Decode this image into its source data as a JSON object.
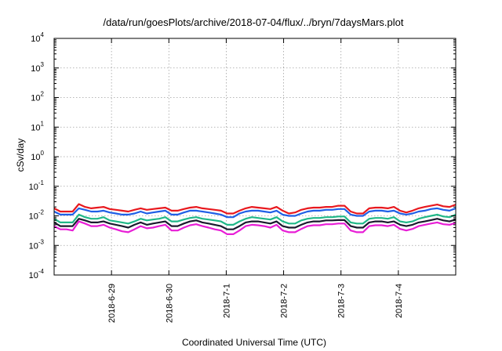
{
  "chart_data": {
    "type": "line",
    "title": "/data/run/goesPlots/archive/2018-07-04/flux/../bryn/7daysMars.plot",
    "xlabel": "Coordinated Universal Time (UTC)",
    "ylabel": "cSv/day",
    "y_scale": "log",
    "ylim": [
      0.0001,
      10000
    ],
    "y_ticks": [
      {
        "base": "10",
        "exp": "-4"
      },
      {
        "base": "10",
        "exp": "-3"
      },
      {
        "base": "10",
        "exp": "-2"
      },
      {
        "base": "10",
        "exp": "-1"
      },
      {
        "base": "10",
        "exp": "0"
      },
      {
        "base": "10",
        "exp": "1"
      },
      {
        "base": "10",
        "exp": "2"
      },
      {
        "base": "10",
        "exp": "3"
      },
      {
        "base": "10",
        "exp": "4"
      }
    ],
    "x_tick_labels": [
      "2018-6-29",
      "2018-6-30",
      "2018-7-1",
      "2018-7-2",
      "2018-7-3",
      "2018-7-4"
    ],
    "x_range_days": [
      "2018-06-28",
      "2018-07-05"
    ],
    "grid": true,
    "series": [
      {
        "color": "#e8181e",
        "values": [
          0.018,
          0.014,
          0.014,
          0.014,
          0.025,
          0.02,
          0.018,
          0.019,
          0.02,
          0.017,
          0.016,
          0.015,
          0.014,
          0.016,
          0.018,
          0.016,
          0.017,
          0.018,
          0.019,
          0.015,
          0.015,
          0.017,
          0.019,
          0.02,
          0.018,
          0.017,
          0.016,
          0.015,
          0.012,
          0.012,
          0.015,
          0.018,
          0.02,
          0.019,
          0.018,
          0.017,
          0.02,
          0.015,
          0.012,
          0.013,
          0.016,
          0.018,
          0.019,
          0.019,
          0.02,
          0.02,
          0.022,
          0.022,
          0.014,
          0.012,
          0.012,
          0.018,
          0.019,
          0.019,
          0.018,
          0.02,
          0.015,
          0.013,
          0.015,
          0.018,
          0.02,
          0.022,
          0.024,
          0.021,
          0.02,
          0.024
        ]
      },
      {
        "color": "#1f5fe6",
        "values": [
          0.014,
          0.011,
          0.011,
          0.011,
          0.018,
          0.016,
          0.014,
          0.014,
          0.015,
          0.013,
          0.012,
          0.011,
          0.011,
          0.012,
          0.014,
          0.012,
          0.013,
          0.014,
          0.015,
          0.011,
          0.011,
          0.013,
          0.015,
          0.015,
          0.014,
          0.013,
          0.012,
          0.011,
          0.009,
          0.009,
          0.012,
          0.014,
          0.015,
          0.015,
          0.014,
          0.013,
          0.015,
          0.011,
          0.01,
          0.01,
          0.012,
          0.014,
          0.015,
          0.015,
          0.016,
          0.016,
          0.017,
          0.017,
          0.011,
          0.01,
          0.01,
          0.014,
          0.015,
          0.015,
          0.014,
          0.015,
          0.012,
          0.011,
          0.012,
          0.014,
          0.015,
          0.017,
          0.018,
          0.016,
          0.015,
          0.018
        ]
      },
      {
        "color": "#20b888",
        "values": [
          0.008,
          0.006,
          0.006,
          0.006,
          0.011,
          0.009,
          0.008,
          0.008,
          0.009,
          0.007,
          0.0065,
          0.006,
          0.0055,
          0.0065,
          0.008,
          0.007,
          0.0075,
          0.008,
          0.009,
          0.0065,
          0.0065,
          0.0075,
          0.0085,
          0.009,
          0.008,
          0.0075,
          0.007,
          0.0065,
          0.005,
          0.005,
          0.0065,
          0.008,
          0.009,
          0.0085,
          0.008,
          0.0075,
          0.009,
          0.0065,
          0.0055,
          0.0055,
          0.007,
          0.008,
          0.0085,
          0.0085,
          0.009,
          0.009,
          0.0095,
          0.0095,
          0.006,
          0.0055,
          0.0055,
          0.008,
          0.0085,
          0.0085,
          0.008,
          0.009,
          0.0065,
          0.006,
          0.0065,
          0.008,
          0.009,
          0.01,
          0.011,
          0.0095,
          0.009,
          0.011
        ]
      },
      {
        "color": "#1a1a2e",
        "values": [
          0.006,
          0.0045,
          0.0045,
          0.0045,
          0.008,
          0.007,
          0.006,
          0.006,
          0.0065,
          0.0055,
          0.005,
          0.0045,
          0.004,
          0.005,
          0.006,
          0.005,
          0.0055,
          0.006,
          0.0065,
          0.0045,
          0.0045,
          0.0055,
          0.0065,
          0.007,
          0.006,
          0.0055,
          0.005,
          0.0045,
          0.0035,
          0.0035,
          0.0045,
          0.006,
          0.0065,
          0.0065,
          0.006,
          0.0055,
          0.0065,
          0.0045,
          0.004,
          0.004,
          0.005,
          0.006,
          0.0065,
          0.0065,
          0.007,
          0.007,
          0.0072,
          0.0072,
          0.0045,
          0.004,
          0.004,
          0.006,
          0.0065,
          0.0065,
          0.006,
          0.0065,
          0.005,
          0.0045,
          0.005,
          0.006,
          0.0065,
          0.0072,
          0.008,
          0.007,
          0.0065,
          0.0075
        ]
      },
      {
        "color": "#e81ed6",
        "values": [
          0.0045,
          0.0035,
          0.0035,
          0.0032,
          0.0065,
          0.0055,
          0.0045,
          0.0045,
          0.005,
          0.004,
          0.0035,
          0.003,
          0.0028,
          0.0035,
          0.0045,
          0.0038,
          0.004,
          0.0045,
          0.005,
          0.0032,
          0.0032,
          0.004,
          0.0048,
          0.0052,
          0.0045,
          0.004,
          0.0035,
          0.0032,
          0.0024,
          0.0024,
          0.0032,
          0.0045,
          0.005,
          0.0048,
          0.0045,
          0.004,
          0.005,
          0.0032,
          0.0028,
          0.0028,
          0.0036,
          0.0045,
          0.0048,
          0.0048,
          0.0052,
          0.0052,
          0.0055,
          0.0055,
          0.0032,
          0.0028,
          0.0028,
          0.0045,
          0.0048,
          0.0048,
          0.0045,
          0.005,
          0.0036,
          0.0032,
          0.0036,
          0.0045,
          0.005,
          0.0055,
          0.006,
          0.0052,
          0.005,
          0.0058
        ]
      }
    ]
  }
}
